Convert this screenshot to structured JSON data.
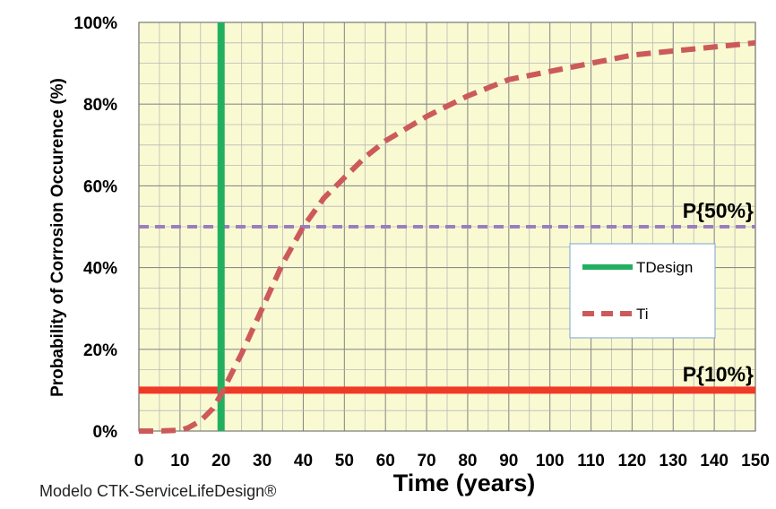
{
  "chart_data": {
    "type": "line",
    "xlabel": "Time (years)",
    "ylabel": "Probability of Corrosion Occurence (%)",
    "xlim": [
      0,
      150
    ],
    "ylim": [
      0,
      100
    ],
    "x_ticks": [
      0,
      10,
      20,
      30,
      40,
      50,
      60,
      70,
      80,
      90,
      100,
      110,
      120,
      130,
      140,
      150
    ],
    "y_ticks": [
      0,
      20,
      40,
      60,
      80,
      100
    ],
    "y_tick_labels": [
      "0%",
      "20%",
      "40%",
      "60%",
      "80%",
      "100%"
    ],
    "grid": true,
    "plot_background": "#fafad2",
    "legend_position": "right-center",
    "series": [
      {
        "name": "TDesign",
        "kind": "vertical-line",
        "x": 20,
        "color": "#22b060",
        "style": "solid"
      },
      {
        "name": "Ti",
        "kind": "curve",
        "color": "#cc5a5a",
        "style": "dashed",
        "x": [
          0,
          5,
          10,
          12,
          15,
          18,
          20,
          22,
          25,
          30,
          35,
          40,
          45,
          50,
          55,
          60,
          65,
          70,
          80,
          90,
          100,
          110,
          120,
          130,
          140,
          150
        ],
        "y": [
          0,
          0,
          0.2,
          0.8,
          2.5,
          5.5,
          9,
          13,
          19,
          30,
          41,
          50,
          57,
          62,
          67,
          71,
          74,
          77,
          82,
          86,
          88,
          90,
          92,
          93,
          94,
          95
        ]
      }
    ],
    "reference_lines": [
      {
        "label": "P{50%}",
        "y": 50,
        "color": "#9a7fbf",
        "style": "dashed"
      },
      {
        "label": "P{10%}",
        "y": 10,
        "color": "#f03a28",
        "style": "solid"
      }
    ]
  },
  "footer": {
    "note": "Modelo CTK-ServiceLifeDesign®"
  }
}
